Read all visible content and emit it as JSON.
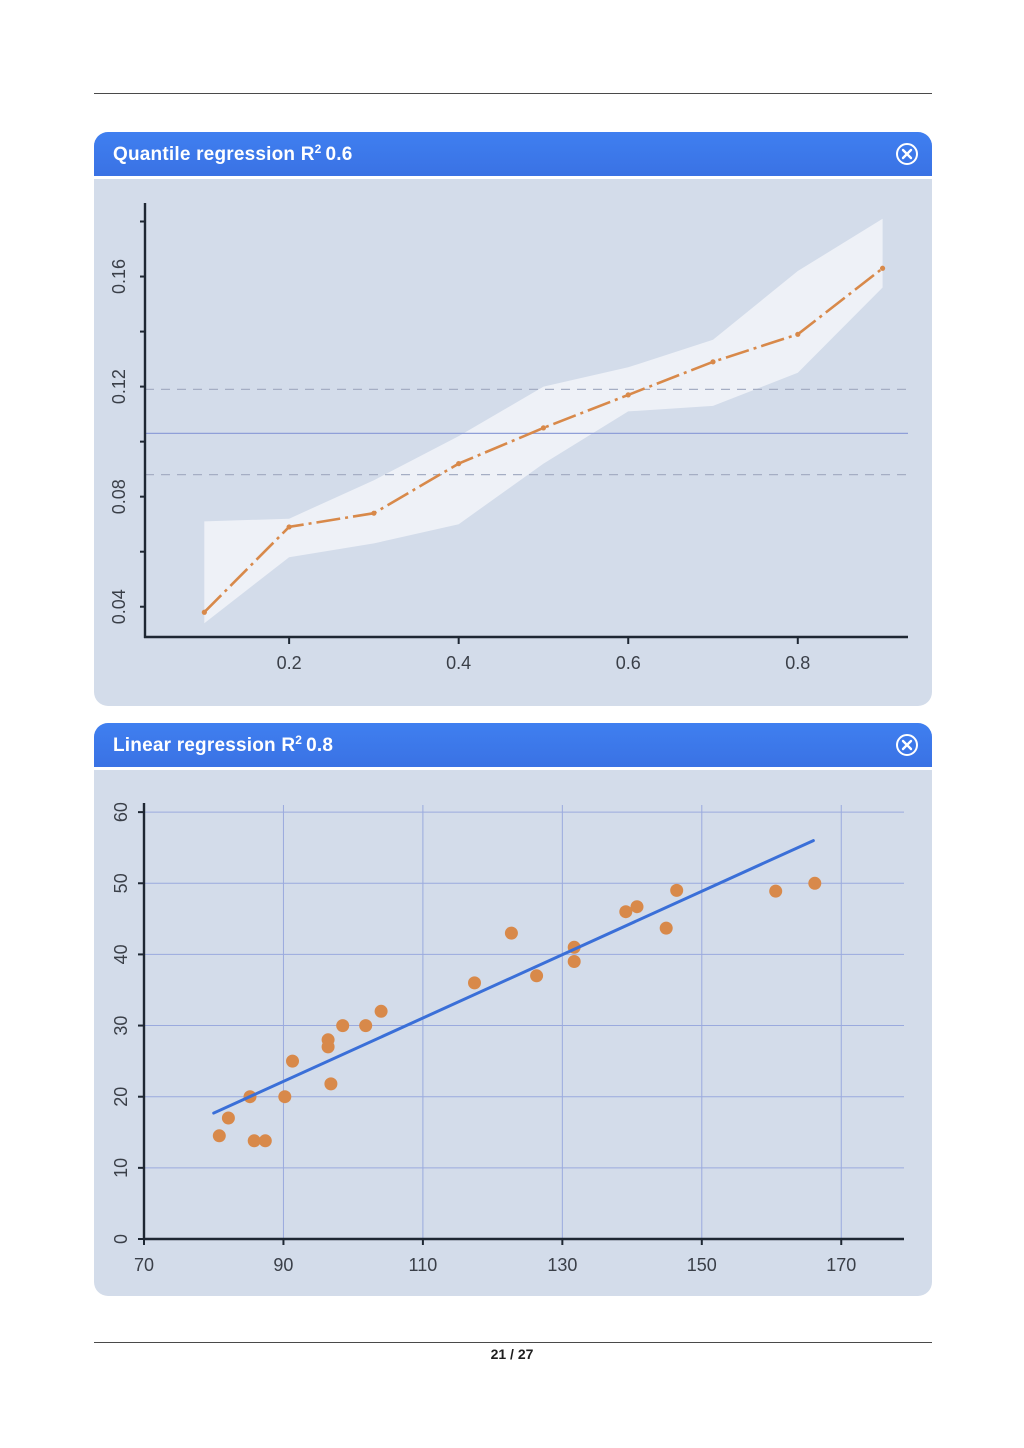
{
  "page": {
    "number": "21 / 27"
  },
  "chart_data": [
    {
      "type": "line",
      "title": "Quantile regression",
      "title_r2_label": "R",
      "title_r2_sup": "2",
      "title_value": "0.6",
      "xlabel": "",
      "ylabel": "",
      "xlim": [
        0.03,
        0.93
      ],
      "ylim": [
        0.029,
        0.186
      ],
      "x_ticks": [
        0.2,
        0.4,
        0.6,
        0.8
      ],
      "x_tick_labels": [
        "0.2",
        "0.4",
        "0.6",
        "0.8"
      ],
      "y_ticks": [
        0.04,
        0.08,
        0.12,
        0.16
      ],
      "y_tick_labels": [
        "0.04",
        "0.08",
        "0.12",
        "0.16"
      ],
      "y_minor_step": 0.02,
      "grid": false,
      "series": [
        {
          "x": [
            0.1,
            0.2,
            0.3,
            0.4,
            0.5,
            0.6,
            0.7,
            0.8,
            0.9
          ],
          "values": [
            0.038,
            0.069,
            0.074,
            0.092,
            0.105,
            0.117,
            0.129,
            0.139,
            0.163
          ],
          "color": "#d8894a",
          "style": "dash-dot"
        }
      ],
      "confidence_band": {
        "x": [
          0.1,
          0.2,
          0.3,
          0.4,
          0.5,
          0.6,
          0.7,
          0.8,
          0.9
        ],
        "upper": [
          0.071,
          0.072,
          0.086,
          0.102,
          0.12,
          0.127,
          0.137,
          0.162,
          0.181
        ],
        "lower": [
          0.034,
          0.058,
          0.063,
          0.07,
          0.092,
          0.111,
          0.113,
          0.125,
          0.156
        ],
        "color": "#eef1f7"
      },
      "reference_lines": [
        {
          "y": 0.103,
          "style": "solid",
          "color": "#8f9fd8"
        },
        {
          "y": 0.119,
          "style": "dashed",
          "color": "#a5aec4"
        },
        {
          "y": 0.088,
          "style": "dashed",
          "color": "#a5aec4"
        }
      ],
      "colors": {
        "panel_bg": "#d3dcea",
        "header": "#3f7ff0",
        "axis": "#1e2733"
      }
    },
    {
      "type": "scatter",
      "title": "Linear regression",
      "title_r2_label": "R",
      "title_r2_sup": "2",
      "title_value": "0.8",
      "xlabel": "",
      "ylabel": "",
      "xlim": [
        70,
        179
      ],
      "ylim": [
        0,
        61
      ],
      "x_ticks": [
        70,
        90,
        110,
        130,
        150,
        170
      ],
      "x_tick_labels": [
        "70",
        "90",
        "110",
        "130",
        "150",
        "170"
      ],
      "y_ticks": [
        0,
        10,
        20,
        30,
        40,
        50,
        60
      ],
      "y_tick_labels": [
        "0",
        "10",
        "20",
        "30",
        "40",
        "50",
        "60"
      ],
      "grid": true,
      "series": [
        {
          "x": [
            80.8,
            82.1,
            85.2,
            85.8,
            87.4,
            90.2,
            91.3,
            96.4,
            96.4,
            96.8,
            98.5,
            101.8,
            104,
            117.4,
            122.7,
            126.3,
            131.7,
            131.7,
            139.1,
            140.7,
            144.9,
            146.4,
            160.6,
            166.2
          ],
          "values": [
            14.5,
            17,
            20,
            13.8,
            13.8,
            20,
            25,
            28,
            27,
            21.8,
            30,
            30,
            32,
            36,
            43,
            37,
            41,
            39,
            46,
            46.7,
            43.7,
            49,
            48.9,
            50
          ],
          "color": "#d8894a"
        }
      ],
      "regression_line": {
        "x": [
          80,
          166
        ],
        "y": [
          17.7,
          56
        ],
        "color": "#3a6fd8"
      },
      "colors": {
        "panel_bg": "#d3dcea",
        "header": "#3f7ff0",
        "grid": "#9aaade",
        "axis": "#1e2733"
      }
    }
  ]
}
